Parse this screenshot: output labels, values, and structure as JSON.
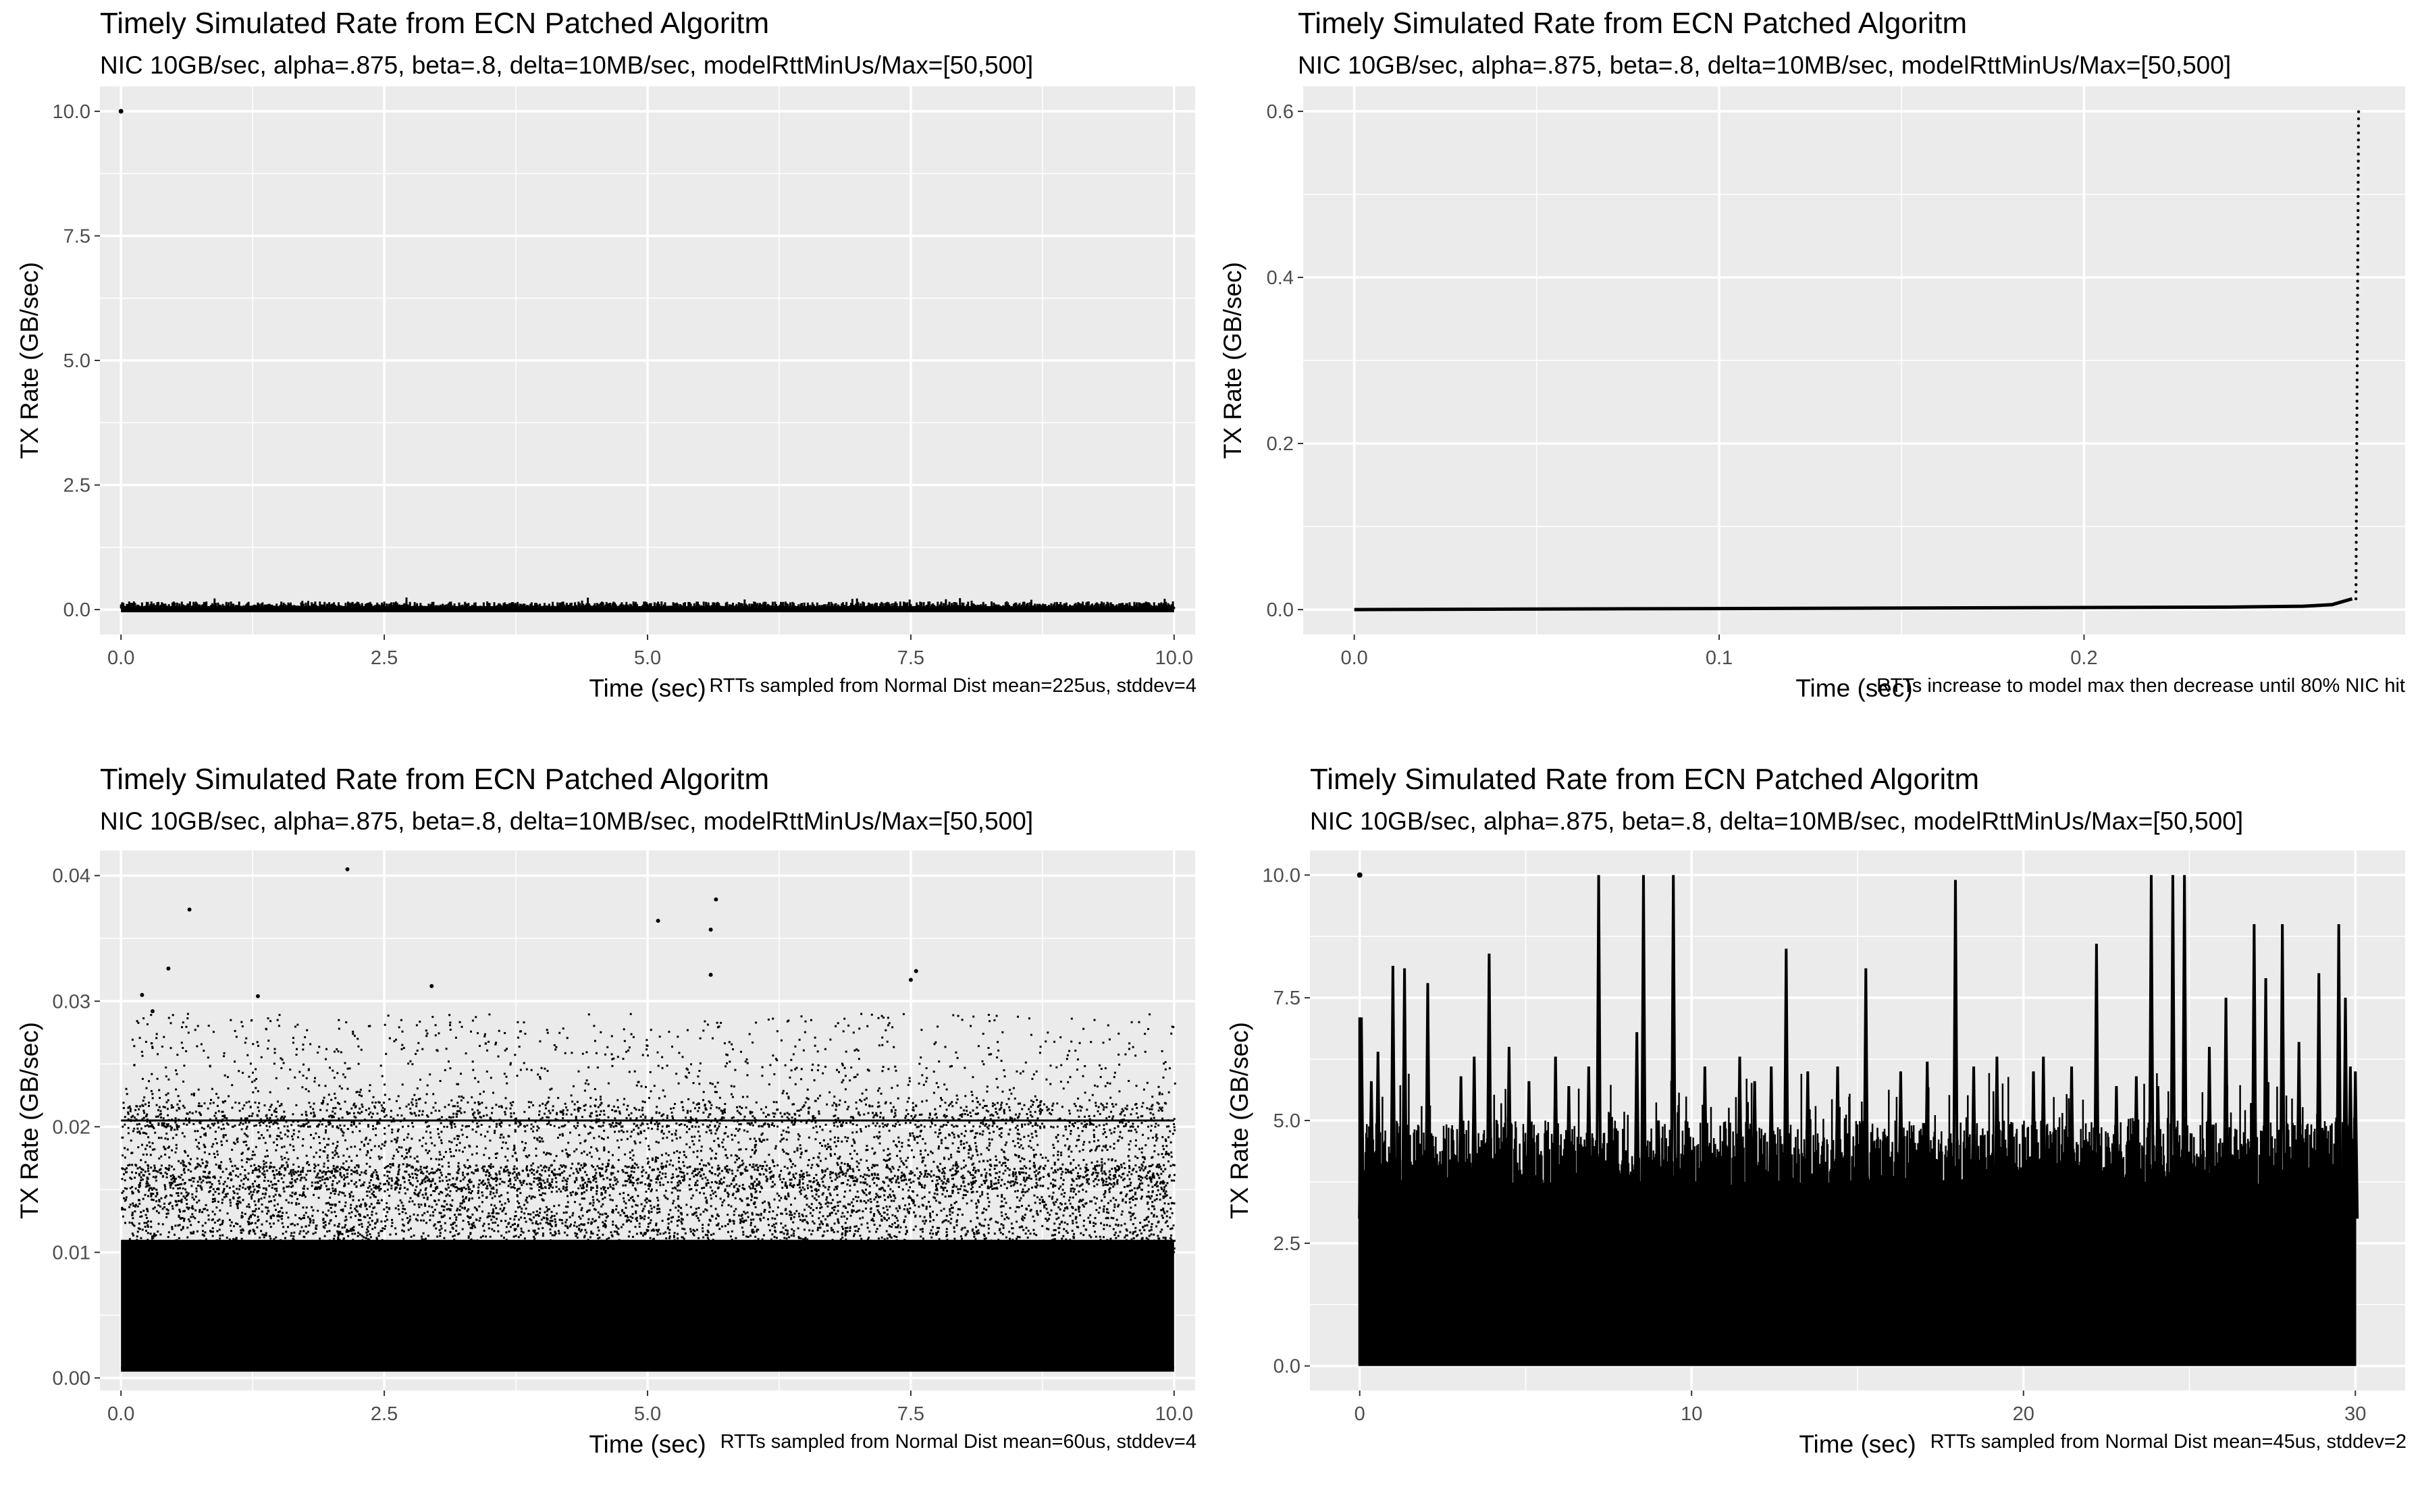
{
  "chart_data": [
    {
      "type": "scatter",
      "title": "Timely Simulated Rate from ECN Patched Algoritm",
      "subtitle": "NIC 10GB/sec, alpha=.875, beta=.8, delta=10MB/sec, modelRttMinUs/Max=[50,500]",
      "caption": "RTTs sampled from Normal Dist mean=225us, stddev=4",
      "xlabel": "Time (sec)",
      "ylabel": "TX Rate (GB/sec)",
      "xlim": [
        -0.2,
        10.2
      ],
      "ylim": [
        -0.5,
        10.5
      ],
      "xticks": [
        0,
        2.5,
        5,
        7.5,
        10
      ],
      "xtick_labels": [
        "0.0",
        "2.5",
        "5.0",
        "7.5",
        "10.0"
      ],
      "yticks": [
        0,
        2.5,
        5,
        7.5,
        10
      ],
      "ytick_labels": [
        "0.0",
        "2.5",
        "5.0",
        "7.5",
        "10.0"
      ],
      "grid": true,
      "points": [
        [
          0,
          10
        ]
      ],
      "band": {
        "x": [
          0,
          10
        ],
        "low": 0.0,
        "high": 0.2,
        "mean": 0.08
      }
    },
    {
      "type": "line",
      "title": "Timely Simulated Rate from ECN Patched Algoritm",
      "subtitle": "NIC 10GB/sec, alpha=.875, beta=.8, delta=10MB/sec, modelRttMinUs/Max=[50,500]",
      "caption": "RTTs increase to model max then decrease until 80% NIC hit",
      "xlabel": "Time (sec)",
      "ylabel": "TX Rate (GB/sec)",
      "xlim": [
        -0.014,
        0.288
      ],
      "ylim": [
        -0.03,
        0.63
      ],
      "xticks": [
        0,
        0.1,
        0.2
      ],
      "xtick_labels": [
        "0.0",
        "0.1",
        "0.2"
      ],
      "yticks": [
        0,
        0.2,
        0.4,
        0.6
      ],
      "ytick_labels": [
        "0.0",
        "0.2",
        "0.4",
        "0.6"
      ],
      "grid": true,
      "x": [
        0,
        0.05,
        0.1,
        0.15,
        0.2,
        0.24,
        0.26,
        0.268,
        0.272,
        0.2735,
        0.274,
        0.2742,
        0.2744,
        0.2746,
        0.2748,
        0.275
      ],
      "y": [
        0.0,
        0.001,
        0.001,
        0.0015,
        0.002,
        0.003,
        0.004,
        0.006,
        0.009,
        0.013,
        0.05,
        0.12,
        0.22,
        0.35,
        0.48,
        0.6
      ]
    },
    {
      "type": "scatter",
      "title": "Timely Simulated Rate from ECN Patched Algoritm",
      "subtitle": "NIC 10GB/sec, alpha=.875, beta=.8, delta=10MB/sec, modelRttMinUs/Max=[50,500]",
      "caption": "RTTs sampled from Normal Dist mean=60us, stddev=4",
      "xlabel": "Time (sec)",
      "ylabel": "TX Rate (GB/sec)",
      "xlim": [
        -0.2,
        10.2
      ],
      "ylim": [
        -0.001,
        0.042
      ],
      "xticks": [
        0,
        2.5,
        5,
        7.5,
        10
      ],
      "xtick_labels": [
        "0.0",
        "2.5",
        "5.0",
        "7.5",
        "10.0"
      ],
      "yticks": [
        0,
        0.01,
        0.02,
        0.03,
        0.04
      ],
      "ytick_labels": [
        "0.00",
        "0.01",
        "0.02",
        "0.03",
        "0.04"
      ],
      "grid": true,
      "cluster_line": 0.0205,
      "outliers": [
        [
          2.15,
          0.0405
        ],
        [
          0.65,
          0.0373
        ],
        [
          5.65,
          0.0381
        ],
        [
          5.1,
          0.0364
        ],
        [
          5.6,
          0.0357
        ],
        [
          0.45,
          0.0326
        ],
        [
          5.6,
          0.0321
        ],
        [
          7.55,
          0.0324
        ],
        [
          7.5,
          0.0317
        ],
        [
          0.2,
          0.0305
        ],
        [
          0.3,
          0.0292
        ],
        [
          2.95,
          0.0312
        ],
        [
          1.3,
          0.0304
        ]
      ],
      "band": {
        "x": [
          0,
          10
        ],
        "low": 0.0005,
        "high": 0.029
      }
    },
    {
      "type": "line",
      "title": "Timely Simulated Rate from ECN Patched Algoritm",
      "subtitle": "NIC 10GB/sec, alpha=.875, beta=.8, delta=10MB/sec, modelRttMinUs/Max=[50,500]",
      "caption": "RTTs sampled from Normal Dist mean=45us, stddev=2",
      "xlabel": "Time (sec)",
      "ylabel": "TX Rate (GB/sec)",
      "xlim": [
        -1.5,
        31.5
      ],
      "ylim": [
        -0.5,
        10.5
      ],
      "xticks": [
        0,
        10,
        20,
        30
      ],
      "xtick_labels": [
        "0",
        "10",
        "20",
        "30"
      ],
      "yticks": [
        0,
        2.5,
        5,
        7.5,
        10
      ],
      "ytick_labels": [
        "0.0",
        "2.5",
        "5.0",
        "7.5",
        "10.0"
      ],
      "grid": true,
      "points": [
        [
          0,
          10
        ]
      ],
      "peaks": [
        [
          0.05,
          7.1
        ],
        [
          0.35,
          5.8
        ],
        [
          0.55,
          6.4
        ],
        [
          1.0,
          8.15
        ],
        [
          1.35,
          8.1
        ],
        [
          2.05,
          7.8
        ],
        [
          3.05,
          5.9
        ],
        [
          3.45,
          6.3
        ],
        [
          3.9,
          8.4
        ],
        [
          4.5,
          6.5
        ],
        [
          5.1,
          5.8
        ],
        [
          5.9,
          6.3
        ],
        [
          6.3,
          5.7
        ],
        [
          6.9,
          6.1
        ],
        [
          7.2,
          10.0
        ],
        [
          8.35,
          6.8
        ],
        [
          8.55,
          10.0
        ],
        [
          9.0,
          5.0
        ],
        [
          9.45,
          10.0
        ],
        [
          10.4,
          6.1
        ],
        [
          11.45,
          6.3
        ],
        [
          11.9,
          5.8
        ],
        [
          12.4,
          6.1
        ],
        [
          12.85,
          8.5
        ],
        [
          13.5,
          6.0
        ],
        [
          14.4,
          6.1
        ],
        [
          15.25,
          8.1
        ],
        [
          16.3,
          6.0
        ],
        [
          17.1,
          6.2
        ],
        [
          17.95,
          9.9
        ],
        [
          18.5,
          6.1
        ],
        [
          19.2,
          6.3
        ],
        [
          20.3,
          6.0
        ],
        [
          20.6,
          6.3
        ],
        [
          21.45,
          6.1
        ],
        [
          22.2,
          8.6
        ],
        [
          22.8,
          5.7
        ],
        [
          23.4,
          5.9
        ],
        [
          23.85,
          10.0
        ],
        [
          24.05,
          5.7
        ],
        [
          24.5,
          10.0
        ],
        [
          24.85,
          10.0
        ],
        [
          25.6,
          6.5
        ],
        [
          26.1,
          7.5
        ],
        [
          26.95,
          9.0
        ],
        [
          27.3,
          7.9
        ],
        [
          27.8,
          9.0
        ],
        [
          28.3,
          6.6
        ],
        [
          28.9,
          8.0
        ],
        [
          29.5,
          9.0
        ],
        [
          29.7,
          7.5
        ],
        [
          29.85,
          6.1
        ],
        [
          30.0,
          6.0
        ]
      ],
      "band": {
        "x": [
          0,
          30
        ],
        "low": 0.0,
        "high": 4.6
      }
    }
  ]
}
